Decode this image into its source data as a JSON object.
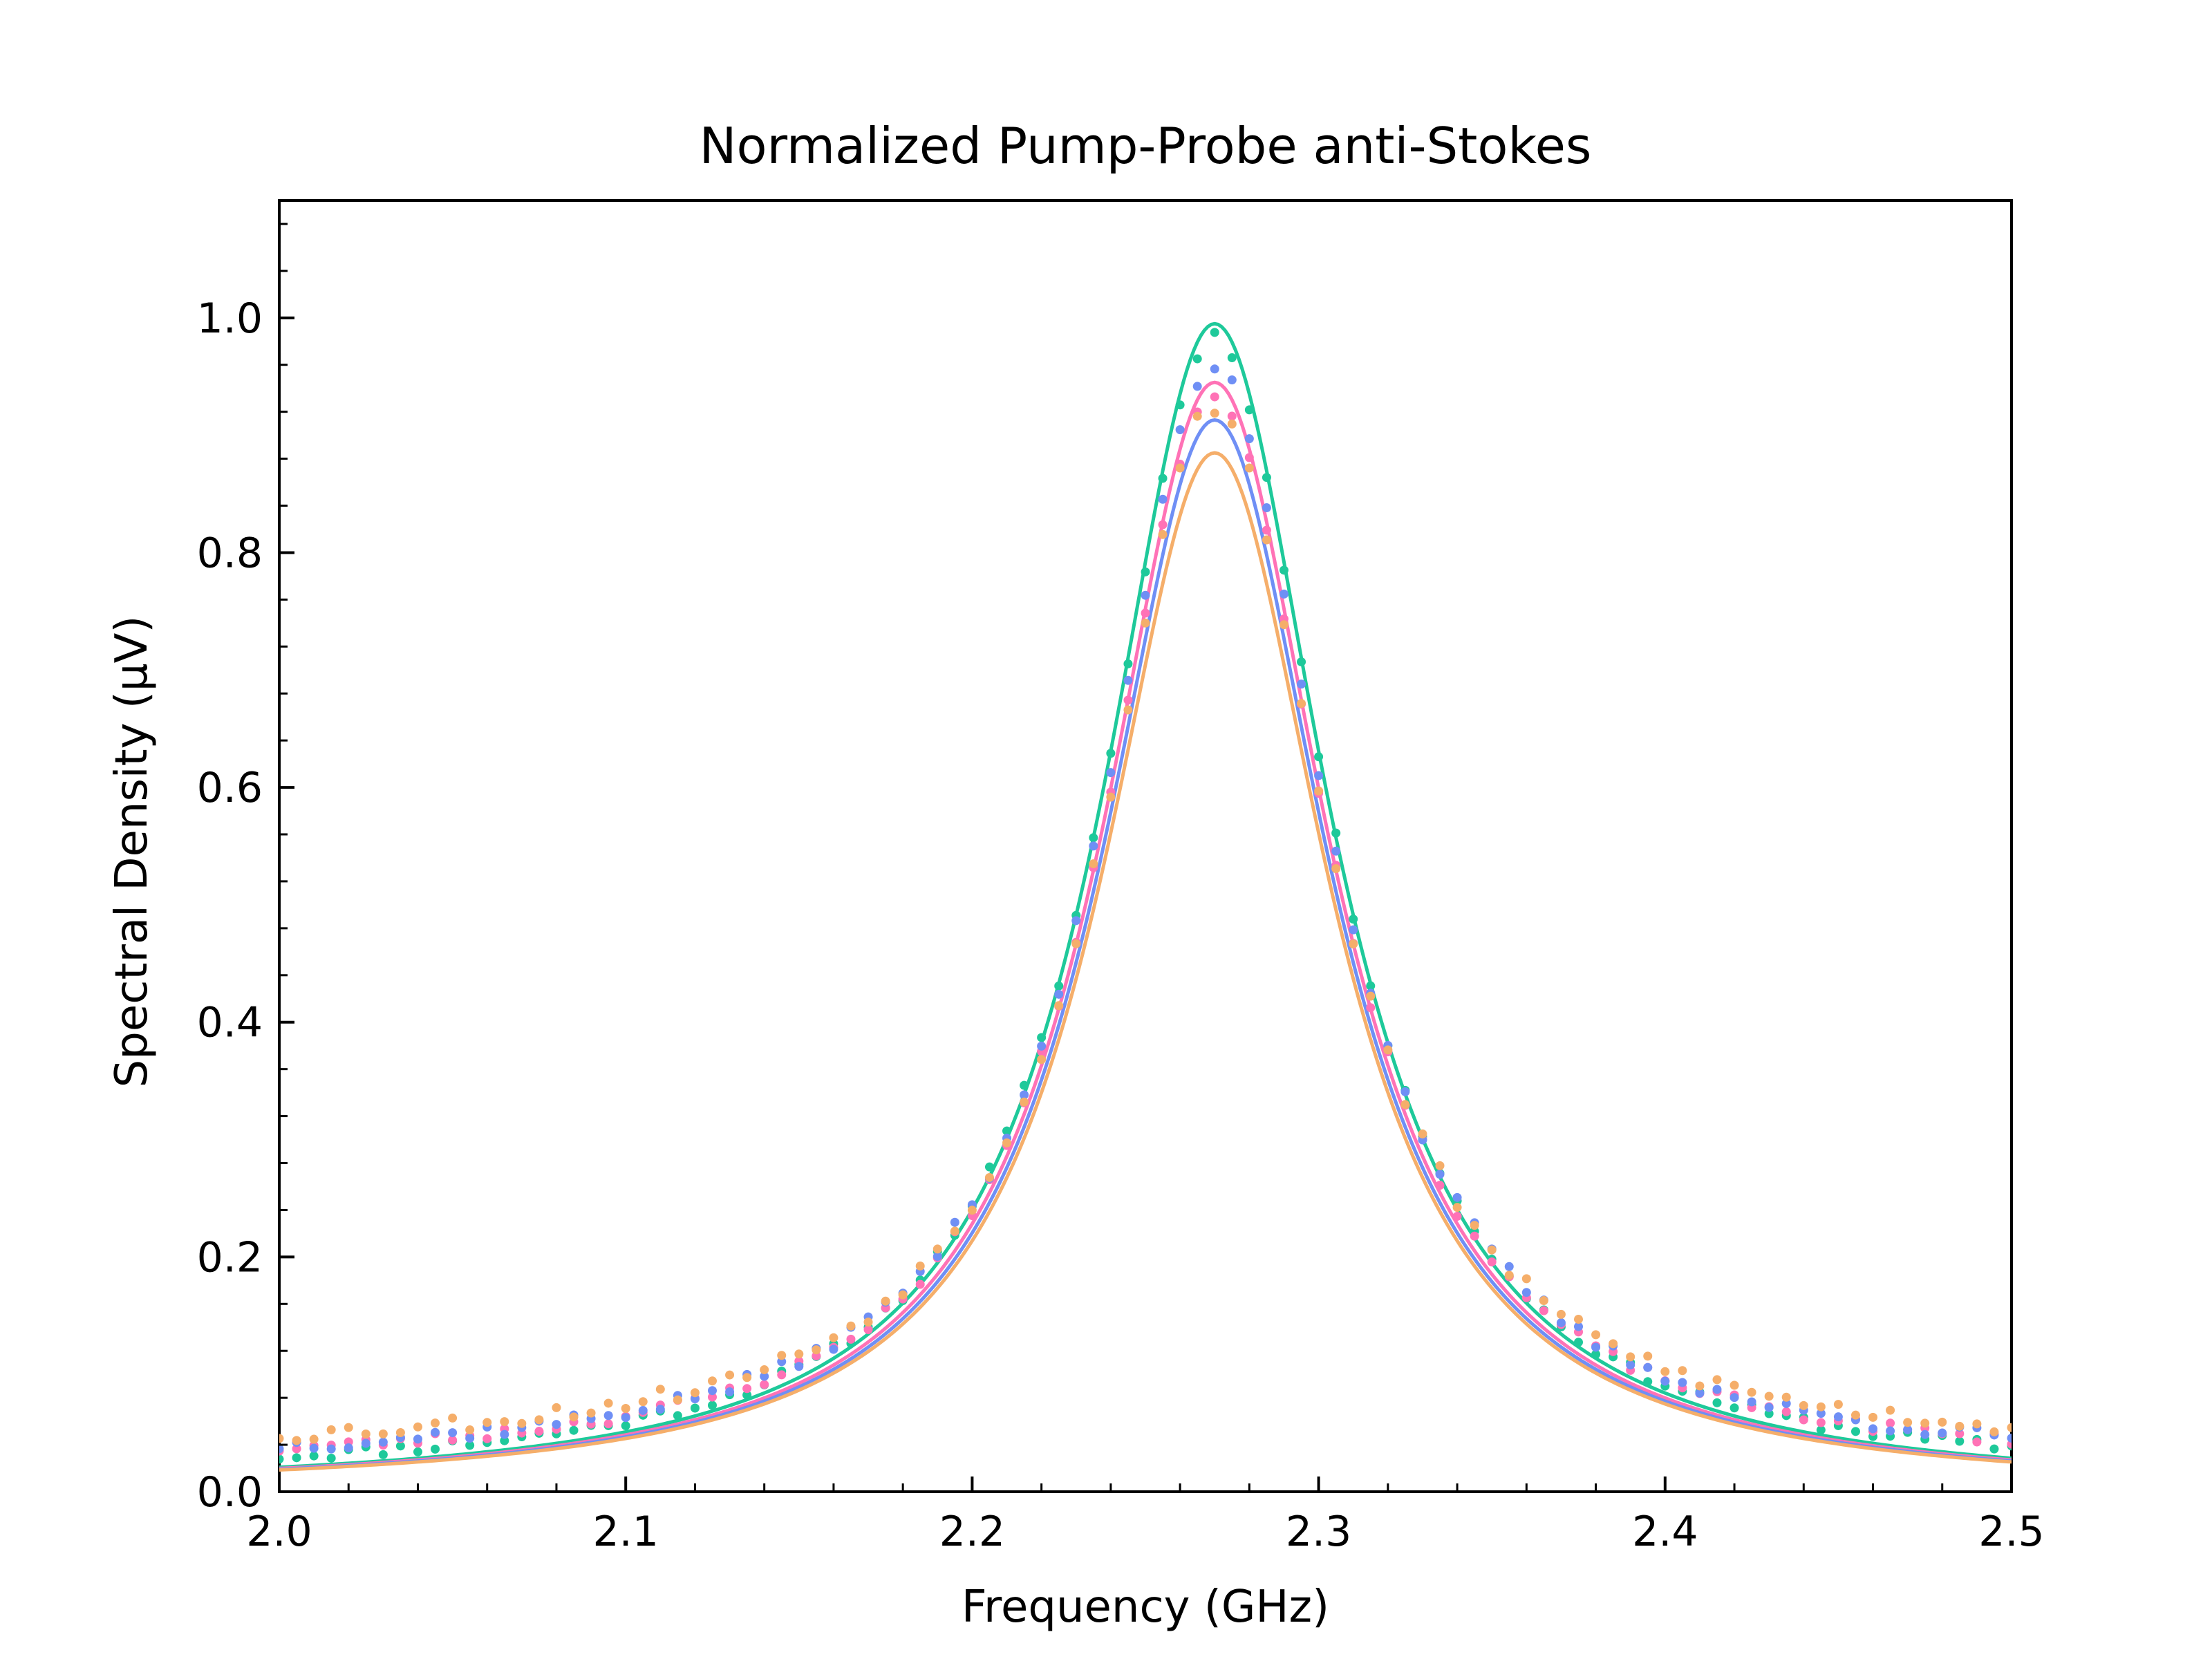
{
  "chart_data": {
    "type": "scatter",
    "title": "Normalized Pump-Probe anti-Stokes",
    "xlabel": "Frequency (GHz)",
    "ylabel": "Spectral Density (μV)",
    "xlim": [
      2.0,
      2.5
    ],
    "ylim": [
      0.0,
      1.1
    ],
    "x_ticks": [
      "2.0",
      "2.1",
      "2.2",
      "2.3",
      "2.4",
      "2.5"
    ],
    "y_ticks": [
      "0.0",
      "0.2",
      "0.4",
      "0.6",
      "0.8",
      "1.0"
    ],
    "x_minor_step": 0.02,
    "y_minor_step": 0.04,
    "grid": false,
    "legend": "none",
    "ticks_direction": "inward",
    "fit_model": {
      "shape": "lorentzian",
      "center": 2.27,
      "half_width": 0.0395
    },
    "series": [
      {
        "color": "#1ec99a",
        "fit_peak": 0.995,
        "data_peak": 0.985,
        "data_wing_excess": 0.01,
        "noise_seed": 11,
        "noise": 0.005
      },
      {
        "color": "#ff72b6",
        "fit_peak": 0.945,
        "data_peak": 0.935,
        "data_wing_excess": 0.018,
        "noise_seed": 23,
        "noise": 0.005
      },
      {
        "color": "#6f8ff5",
        "fit_peak": 0.913,
        "data_peak": 0.958,
        "data_wing_excess": 0.02,
        "noise_seed": 37,
        "noise": 0.006
      },
      {
        "color": "#f5ae6a",
        "fit_peak": 0.885,
        "data_peak": 0.925,
        "data_wing_excess": 0.03,
        "noise_seed": 53,
        "noise": 0.007
      }
    ],
    "data_x_range": [
      2.0,
      2.5
    ],
    "data_x_step": 0.005
  }
}
